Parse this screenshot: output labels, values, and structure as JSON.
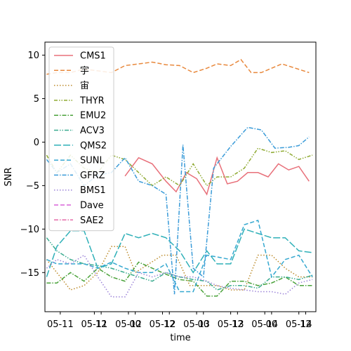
{
  "chart_data": {
    "type": "line",
    "xlabel": "time",
    "ylabel": "SNR",
    "ylim": [
      -19.5,
      11.5
    ],
    "xlim": [
      -0.45,
      7.5
    ],
    "grid": false,
    "legend": {
      "placement": "top-left",
      "columns": 1
    },
    "x_ticks": [
      {
        "pos": 0,
        "label": "05-11"
      },
      {
        "pos": 1,
        "label": "05-11"
      },
      {
        "pos": 1.2,
        "label": "12"
      },
      {
        "pos": 2,
        "label": "05-12"
      },
      {
        "pos": 2.2,
        "label": "00"
      },
      {
        "pos": 3,
        "label": "05-12"
      },
      {
        "pos": 3.2,
        "label": "12"
      },
      {
        "pos": 4,
        "label": "05-13"
      },
      {
        "pos": 4.2,
        "label": "00"
      },
      {
        "pos": 5,
        "label": "05-13"
      },
      {
        "pos": 5.2,
        "label": "12"
      },
      {
        "pos": 6,
        "label": "05-14"
      },
      {
        "pos": 6.2,
        "label": "00"
      },
      {
        "pos": 7,
        "label": "05-14"
      },
      {
        "pos": 7.2,
        "label": "12"
      }
    ],
    "y_ticks": [
      10,
      5,
      0,
      -5,
      -10,
      -15
    ],
    "series": [
      {
        "name": "CMS1",
        "color": "#e8707a",
        "dash": "solid",
        "x": [
          1.9,
          2.3,
          2.7,
          3.1,
          3.4,
          3.7,
          4.0,
          4.3,
          4.6,
          4.9,
          5.2,
          5.5,
          5.8,
          6.1,
          6.4,
          6.7,
          7.0,
          7.3
        ],
        "y": [
          -3.9,
          -1.8,
          -2.5,
          -4.5,
          -5.7,
          -3.5,
          -4.2,
          -6.0,
          -1.8,
          -4.8,
          -4.5,
          -3.5,
          -3.5,
          -4.0,
          -2.5,
          -3.2,
          -2.8,
          -4.5
        ]
      },
      {
        "name": "宇",
        "color": "#e8883c",
        "dash": "dashed",
        "x": [
          -0.4,
          -0.1,
          0.3,
          0.7,
          1.1,
          1.5,
          1.9,
          2.3,
          2.7,
          3.1,
          3.5,
          3.9,
          4.3,
          4.6,
          5.0,
          5.3,
          5.6,
          5.9,
          6.2,
          6.5,
          6.9,
          7.3
        ],
        "y": [
          7.8,
          8.0,
          8.0,
          8.4,
          8.2,
          8.0,
          8.8,
          9.0,
          9.2,
          8.9,
          8.8,
          8.0,
          8.5,
          9.0,
          8.8,
          9.5,
          8.0,
          8.0,
          8.5,
          9.0,
          8.5,
          8.0
        ]
      },
      {
        "name": "宙",
        "color": "#bc8b2b",
        "dash": "dotted",
        "x": [
          -0.4,
          -0.1,
          0.3,
          0.7,
          1.1,
          1.5,
          1.9,
          2.2,
          2.6,
          3.0,
          3.4,
          3.8,
          4.2,
          4.6,
          5.0,
          5.4,
          5.8,
          6.2,
          6.6,
          7.0,
          7.4
        ],
        "y": [
          -13.5,
          -15.0,
          -17.0,
          -16.5,
          -15.0,
          -12.0,
          -12.0,
          -15.0,
          -14.0,
          -13.0,
          -13.0,
          -16.5,
          -16.5,
          -16.5,
          -17.0,
          -17.0,
          -13.0,
          -13.0,
          -14.5,
          -15.5,
          -15.5
        ]
      },
      {
        "name": "THYR",
        "color": "#8faa32",
        "dash": "dashdot2",
        "x": [
          -0.4,
          -0.1,
          0.3,
          0.7,
          1.1,
          1.5,
          1.9,
          2.3,
          2.7,
          3.1,
          3.5,
          3.9,
          4.3,
          4.6,
          5.0,
          5.4,
          5.8,
          6.2,
          6.6,
          7.0,
          7.4
        ],
        "y": [
          -1.5,
          -3.5,
          -1.5,
          -3.0,
          -3.5,
          -1.5,
          -2.0,
          -3.5,
          -5.0,
          -4.0,
          -5.0,
          -2.5,
          -5.0,
          -4.0,
          -4.0,
          -3.0,
          -0.7,
          -1.2,
          -1.0,
          -2.0,
          -1.5
        ]
      },
      {
        "name": "EMU2",
        "color": "#4aa23a",
        "dash": "dashdot",
        "x": [
          -0.4,
          -0.1,
          0.3,
          0.7,
          1.1,
          1.5,
          1.9,
          2.3,
          2.7,
          3.1,
          3.5,
          3.9,
          4.3,
          4.6,
          5.0,
          5.4,
          5.8,
          6.2,
          6.6,
          7.0,
          7.4
        ],
        "y": [
          -16.2,
          -16.2,
          -15.0,
          -16.0,
          -14.5,
          -15.5,
          -16.0,
          -13.8,
          -14.5,
          -15.2,
          -15.8,
          -16.0,
          -17.7,
          -17.7,
          -16.0,
          -16.0,
          -16.5,
          -16.2,
          -15.5,
          -16.5,
          -16.5
        ]
      },
      {
        "name": "ACV3",
        "color": "#3aab8f",
        "dash": "dashdotdot",
        "x": [
          -0.4,
          -0.1,
          0.3,
          0.7,
          1.1,
          1.5,
          1.9,
          2.3,
          2.7,
          3.1,
          3.5,
          3.9,
          4.3,
          4.6,
          5.0,
          5.4,
          5.8,
          6.2,
          6.6,
          7.0,
          7.4
        ],
        "y": [
          -11.0,
          -12.5,
          -13.5,
          -14.0,
          -14.2,
          -14.5,
          -15.0,
          -15.5,
          -16.0,
          -15.0,
          -15.5,
          -15.8,
          -16.0,
          -17.0,
          -16.5,
          -16.5,
          -16.8,
          -15.5,
          -15.5,
          -15.8,
          -15.3
        ]
      },
      {
        "name": "QMS2",
        "color": "#2fb0b8",
        "dash": "longdash",
        "x": [
          -0.4,
          -0.1,
          0.3,
          0.7,
          1.1,
          1.5,
          1.9,
          2.3,
          2.7,
          3.1,
          3.5,
          3.9,
          4.3,
          4.6,
          5.0,
          5.4,
          5.8,
          6.2,
          6.6,
          7.0,
          7.4
        ],
        "y": [
          -15.5,
          -12.0,
          -10.2,
          -10.2,
          -14.5,
          -14.0,
          -10.5,
          -11.0,
          -10.5,
          -11.0,
          -12.5,
          -15.0,
          -12.5,
          -14.0,
          -14.0,
          -10.0,
          -10.5,
          -11.0,
          -11.0,
          -12.5,
          -12.7
        ]
      },
      {
        "name": "SUNL",
        "color": "#35a8d0",
        "dash": "dashed",
        "x": [
          -0.4,
          -0.1,
          0.3,
          0.7,
          1.1,
          1.5,
          1.9,
          2.3,
          2.7,
          3.1,
          3.5,
          3.9,
          4.3,
          4.6,
          5.0,
          5.4,
          5.8,
          6.2,
          6.6,
          7.0,
          7.4
        ],
        "y": [
          -13.5,
          -14.0,
          -14.0,
          -14.0,
          -14.5,
          -13.8,
          -14.5,
          -15.0,
          -15.0,
          -14.0,
          -17.2,
          -17.2,
          -13.0,
          -13.2,
          -13.5,
          -9.5,
          -9.0,
          -15.5,
          -13.5,
          -13.0,
          -15.5
        ]
      },
      {
        "name": "GFRZ",
        "color": "#3a9bd8",
        "dash": "dashdot",
        "x": [
          -0.4,
          -0.1,
          0.3,
          0.7,
          1.1,
          1.5,
          1.9,
          2.3,
          2.7,
          3.1,
          3.35,
          3.6,
          3.9,
          4.2,
          4.5,
          5.0,
          5.5,
          5.9,
          6.3,
          6.7,
          7.0,
          7.3
        ],
        "y": [
          -2.0,
          -3.5,
          -2.5,
          -5.0,
          -3.8,
          -3.5,
          -1.8,
          -4.5,
          -5.0,
          -6.0,
          -17.5,
          -0.3,
          -14.5,
          -15.5,
          -3.0,
          -0.5,
          1.7,
          1.4,
          -0.7,
          -0.6,
          -0.4,
          0.6
        ]
      },
      {
        "name": "BMS1",
        "color": "#9b82d8",
        "dash": "dotted",
        "x": [
          -0.4,
          -0.1,
          0.3,
          0.7,
          1.1,
          1.5,
          1.9,
          2.3,
          2.7,
          3.1,
          3.5,
          3.9,
          4.3,
          4.6,
          5.0,
          5.4,
          5.8,
          6.2,
          6.6,
          7.0,
          7.4
        ],
        "y": [
          -14.5,
          -13.5,
          -14.0,
          -13.0,
          -15.5,
          -17.8,
          -17.8,
          -15.0,
          -15.5,
          -15.0,
          -15.5,
          -15.5,
          -16.0,
          -16.5,
          -16.8,
          -17.0,
          -17.2,
          -17.2,
          -17.5,
          -16.2,
          -15.8
        ]
      }
    ],
    "legend_only_series": [
      {
        "name": "Dave",
        "color": "#d862d8",
        "dash": "dashed"
      },
      {
        "name": "SAE2",
        "color": "#e46aa8",
        "dash": "dashdot"
      }
    ]
  }
}
